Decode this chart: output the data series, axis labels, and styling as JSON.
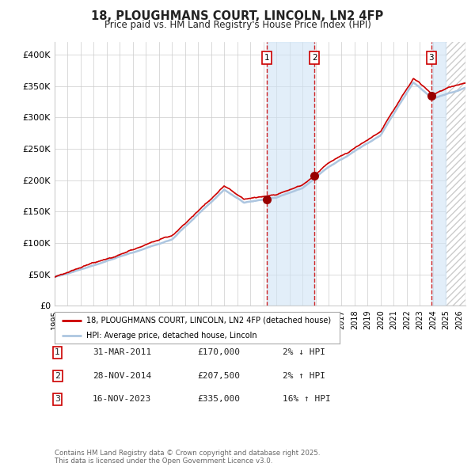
{
  "title": "18, PLOUGHMANS COURT, LINCOLN, LN2 4FP",
  "subtitle": "Price paid vs. HM Land Registry's House Price Index (HPI)",
  "legend_line1": "18, PLOUGHMANS COURT, LINCOLN, LN2 4FP (detached house)",
  "legend_line2": "HPI: Average price, detached house, Lincoln",
  "sale_dates": [
    "2011-03-31",
    "2014-11-28",
    "2023-11-16"
  ],
  "sale_prices": [
    170000,
    207500,
    335000
  ],
  "sale_labels": [
    "1",
    "2",
    "3"
  ],
  "sale_info": [
    [
      "1",
      "31-MAR-2011",
      "£170,000",
      "2% ↓ HPI"
    ],
    [
      "2",
      "28-NOV-2014",
      "£207,500",
      "2% ↑ HPI"
    ],
    [
      "3",
      "16-NOV-2023",
      "£335,000",
      "16% ↑ HPI"
    ]
  ],
  "hpi_line_color": "#adc6e0",
  "price_line_color": "#cc0000",
  "marker_color": "#990000",
  "vline_color": "#cc0000",
  "shade_color": "#d0e4f5",
  "hatch_color": "#cccccc",
  "grid_color": "#cccccc",
  "bg_color": "#ffffff",
  "footnote": "Contains HM Land Registry data © Crown copyright and database right 2025.\nThis data is licensed under the Open Government Licence v3.0.",
  "ylim": [
    0,
    420000
  ],
  "yticks": [
    0,
    50000,
    100000,
    150000,
    200000,
    250000,
    300000,
    350000,
    400000
  ],
  "ytick_labels": [
    "£0",
    "£50K",
    "£100K",
    "£150K",
    "£200K",
    "£250K",
    "£300K",
    "£350K",
    "£400K"
  ],
  "xlim_start": 1995,
  "xlim_end": 2026.5,
  "future_start": 2025.0,
  "sale_year_vals": [
    2011.25,
    2014.917,
    2023.875
  ]
}
